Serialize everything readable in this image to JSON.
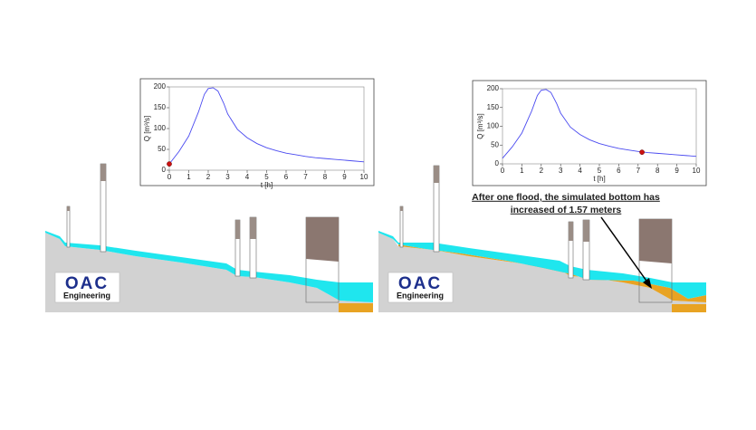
{
  "chart_data": [
    {
      "type": "line",
      "ylabel": "Q [m³/s]",
      "xlabel": "t [h]",
      "xlim": [
        0,
        10
      ],
      "xticks": [
        0,
        1,
        2,
        3,
        4,
        5,
        6,
        7,
        8,
        9,
        10
      ],
      "ylim": [
        0,
        200
      ],
      "yticks": [
        0,
        50,
        100,
        150,
        200
      ],
      "series": [
        {
          "color": "#4a4af0",
          "x": [
            0,
            0.5,
            1,
            1.5,
            1.8,
            2,
            2.25,
            2.5,
            2.8,
            3,
            3.5,
            4,
            4.5,
            5,
            5.5,
            6,
            6.5,
            7,
            7.5,
            8,
            8.5,
            9,
            9.5,
            10
          ],
          "values": [
            15,
            45,
            82,
            140,
            182,
            196,
            198,
            190,
            160,
            135,
            98,
            78,
            64,
            54,
            47,
            41,
            37,
            33,
            30,
            28,
            26,
            24,
            22,
            20
          ]
        }
      ],
      "marker": {
        "x": 0,
        "y": 15,
        "color": "#cc1111"
      }
    },
    {
      "type": "line",
      "ylabel": "Q [m³/s]",
      "xlabel": "t [h]",
      "xlim": [
        0,
        10
      ],
      "xticks": [
        0,
        1,
        2,
        3,
        4,
        5,
        6,
        7,
        8,
        9,
        10
      ],
      "ylim": [
        0,
        200
      ],
      "yticks": [
        0,
        50,
        100,
        150,
        200
      ],
      "series": [
        {
          "color": "#4a4af0",
          "x": [
            0,
            0.5,
            1,
            1.5,
            1.8,
            2,
            2.25,
            2.5,
            2.8,
            3,
            3.5,
            4,
            4.5,
            5,
            5.5,
            6,
            6.5,
            7,
            7.5,
            8,
            8.5,
            9,
            9.5,
            10
          ],
          "values": [
            15,
            45,
            82,
            140,
            182,
            196,
            198,
            190,
            160,
            135,
            98,
            78,
            64,
            54,
            47,
            41,
            37,
            33,
            30,
            28,
            26,
            24,
            22,
            20
          ]
        }
      ],
      "marker": {
        "x": 7.2,
        "y": 31,
        "color": "#cc1111"
      }
    }
  ],
  "annotation": [
    "After one flood, the simulated bottom has",
    "increased of 1.57 meters"
  ],
  "logo": {
    "mark": "OAC",
    "caption": "Engineering"
  }
}
